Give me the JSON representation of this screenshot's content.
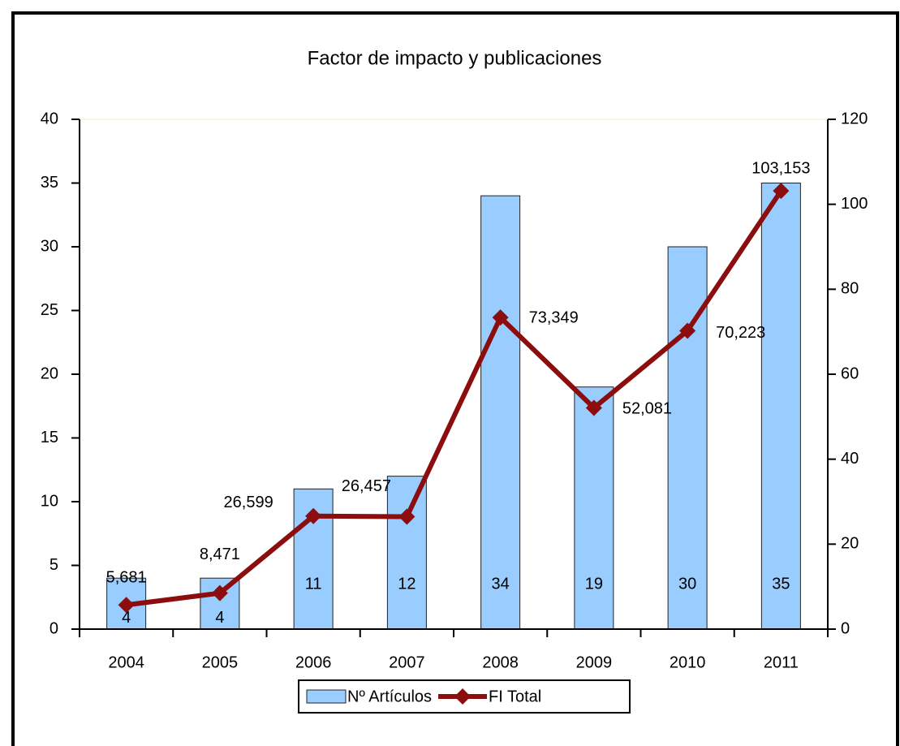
{
  "chart_data": {
    "type": "bar",
    "title": "Factor de impacto y publicaciones",
    "categories": [
      "2004",
      "2005",
      "2006",
      "2007",
      "2008",
      "2009",
      "2010",
      "2011"
    ],
    "series": [
      {
        "name": "Nº Artículos",
        "type": "bar",
        "color": "#99ccff",
        "values": [
          4,
          4,
          11,
          12,
          34,
          19,
          30,
          35
        ]
      },
      {
        "name": "FI Total",
        "type": "line",
        "axis": "y2",
        "color": "#8b0d0d",
        "values": [
          5.681,
          8.471,
          26.599,
          26.457,
          73.349,
          52.081,
          70.223,
          103.153
        ],
        "value_labels": [
          "5,681",
          "8,471",
          "26,599",
          "26,457",
          "73,349",
          "52,081",
          "70,223",
          "103,153"
        ]
      }
    ],
    "ylim": [
      0,
      40
    ],
    "yticks": [
      0,
      5,
      10,
      15,
      20,
      25,
      30,
      35,
      40
    ],
    "y2lim": [
      0,
      120
    ],
    "y2ticks": [
      0,
      20,
      40,
      60,
      80,
      100,
      120
    ],
    "legend": "bottom"
  }
}
